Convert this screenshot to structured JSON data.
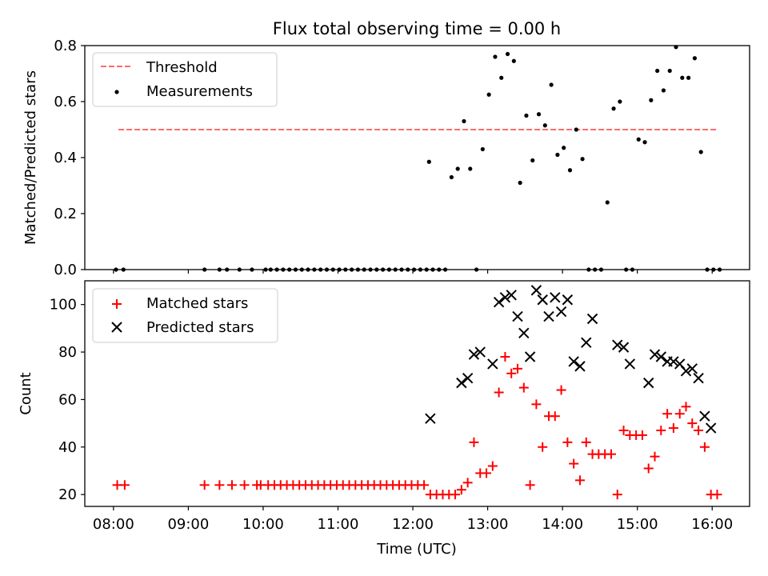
{
  "chart_data": [
    {
      "type": "scatter",
      "title": "Flux total observing time = 0.00 h",
      "xlabel": "",
      "ylabel": "Matched/Predicted stars",
      "xlim": [
        "07:37",
        "16:30"
      ],
      "ylim": [
        0,
        0.8
      ],
      "xticks": [
        "08:00",
        "09:00",
        "10:00",
        "11:00",
        "12:00",
        "13:00",
        "14:00",
        "15:00",
        "16:00"
      ],
      "yticks": [
        0,
        0.2,
        0.4,
        0.6,
        0.8
      ],
      "legend": "top-left",
      "threshold": {
        "name": "Threshold",
        "value": 0.5,
        "x_range": [
          "08:04",
          "16:04"
        ],
        "color": "#ff6b6b",
        "style": "dashed"
      },
      "series": [
        {
          "name": "Measurements",
          "color": "#000000",
          "marker": "dot",
          "x": [
            "08:02",
            "08:08",
            "09:13",
            "09:25",
            "09:31",
            "09:41",
            "09:51",
            "10:02",
            "10:06",
            "10:11",
            "10:16",
            "10:21",
            "10:26",
            "10:31",
            "10:36",
            "10:41",
            "10:46",
            "10:51",
            "10:56",
            "11:01",
            "11:06",
            "11:11",
            "11:16",
            "11:21",
            "11:26",
            "11:31",
            "11:36",
            "11:41",
            "11:46",
            "11:51",
            "11:56",
            "12:01",
            "12:06",
            "12:11",
            "12:13",
            "12:16",
            "12:21",
            "12:26",
            "12:31",
            "12:36",
            "12:41",
            "12:46",
            "12:51",
            "12:56",
            "13:01",
            "13:06",
            "13:11",
            "13:16",
            "13:21",
            "13:26",
            "13:31",
            "13:36",
            "13:41",
            "13:46",
            "13:51",
            "13:56",
            "14:01",
            "14:06",
            "14:11",
            "14:16",
            "14:21",
            "14:26",
            "14:31",
            "14:36",
            "14:41",
            "14:46",
            "14:51",
            "14:56",
            "15:01",
            "15:06",
            "15:11",
            "15:16",
            "15:21",
            "15:26",
            "15:31",
            "15:36",
            "15:41",
            "15:46",
            "15:51",
            "15:56",
            "16:01",
            "16:06"
          ],
          "y": [
            0,
            0,
            0,
            0,
            0,
            0,
            0,
            0,
            0,
            0,
            0,
            0,
            0,
            0,
            0,
            0,
            0,
            0,
            0,
            0,
            0,
            0,
            0,
            0,
            0,
            0,
            0,
            0,
            0,
            0,
            0,
            0,
            0,
            0,
            0.385,
            0,
            0,
            0,
            0.33,
            0.36,
            0.53,
            0.36,
            0,
            0.43,
            0.625,
            0.76,
            0.685,
            0.77,
            0.745,
            0.31,
            0.55,
            0.39,
            0.555,
            0.515,
            0.66,
            0.41,
            0.435,
            0.355,
            0.5,
            0.395,
            0,
            0,
            0,
            0.24,
            0.575,
            0.6,
            0,
            0,
            0.465,
            0.455,
            0.605,
            0.71,
            0.64,
            0.71,
            0.795,
            0.685,
            0.685,
            0.755,
            0.42,
            0,
            0,
            0
          ]
        }
      ]
    },
    {
      "type": "scatter",
      "title": "",
      "xlabel": "Time (UTC)",
      "ylabel": "Count",
      "xlim": [
        "07:37",
        "16:30"
      ],
      "ylim": [
        15,
        110
      ],
      "xticks": [
        "08:00",
        "09:00",
        "10:00",
        "11:00",
        "12:00",
        "13:00",
        "14:00",
        "15:00",
        "16:00"
      ],
      "yticks": [
        20,
        40,
        60,
        80,
        100
      ],
      "legend": "top-left",
      "series": [
        {
          "name": "Matched stars",
          "color": "#ff0000",
          "marker": "plus",
          "x": [
            "08:03",
            "08:09",
            "09:13",
            "09:25",
            "09:35",
            "09:45",
            "09:55",
            "09:58",
            "10:04",
            "10:09",
            "10:14",
            "10:19",
            "10:24",
            "10:29",
            "10:34",
            "10:39",
            "10:44",
            "10:49",
            "10:54",
            "10:59",
            "11:04",
            "11:09",
            "11:14",
            "11:19",
            "11:24",
            "11:29",
            "11:34",
            "11:39",
            "11:44",
            "11:49",
            "11:54",
            "11:59",
            "12:04",
            "12:09",
            "12:14",
            "12:19",
            "12:24",
            "12:29",
            "12:34",
            "12:39",
            "12:44",
            "12:49",
            "12:54",
            "12:59",
            "13:04",
            "13:09",
            "13:14",
            "13:19",
            "13:24",
            "13:29",
            "13:34",
            "13:39",
            "13:44",
            "13:49",
            "13:54",
            "13:59",
            "14:04",
            "14:09",
            "14:14",
            "14:19",
            "14:24",
            "14:29",
            "14:34",
            "14:39",
            "14:44",
            "14:49",
            "14:54",
            "14:59",
            "15:04",
            "15:09",
            "15:14",
            "15:19",
            "15:24",
            "15:29",
            "15:34",
            "15:39",
            "15:44",
            "15:49",
            "15:54",
            "15:59",
            "16:04"
          ],
          "y": [
            24,
            24,
            24,
            24,
            24,
            24,
            24,
            24,
            24,
            24,
            24,
            24,
            24,
            24,
            24,
            24,
            24,
            24,
            24,
            24,
            24,
            24,
            24,
            24,
            24,
            24,
            24,
            24,
            24,
            24,
            24,
            24,
            24,
            24,
            20,
            20,
            20,
            20,
            20,
            22,
            25,
            42,
            29,
            29,
            32,
            63,
            78,
            71,
            73,
            65,
            24,
            58,
            40,
            53,
            53,
            64,
            42,
            33,
            26,
            42,
            37,
            37,
            37,
            37,
            20,
            47,
            45,
            45,
            45,
            31,
            36,
            47,
            54,
            48,
            54,
            57,
            50,
            47,
            40,
            20,
            20
          ]
        },
        {
          "name": "Predicted stars",
          "color": "#000000",
          "marker": "x",
          "x": [
            "12:14",
            "12:39",
            "12:44",
            "12:49",
            "12:54",
            "13:04",
            "13:09",
            "13:14",
            "13:19",
            "13:24",
            "13:29",
            "13:34",
            "13:39",
            "13:44",
            "13:49",
            "13:54",
            "13:59",
            "14:04",
            "14:09",
            "14:14",
            "14:19",
            "14:24",
            "14:44",
            "14:49",
            "14:54",
            "15:09",
            "15:14",
            "15:19",
            "15:24",
            "15:29",
            "15:34",
            "15:39",
            "15:44",
            "15:49",
            "15:54",
            "15:59"
          ],
          "y": [
            52,
            67,
            69,
            79,
            80,
            75,
            101,
            103,
            104,
            95,
            88,
            78,
            106,
            102,
            95,
            103,
            97,
            102,
            76,
            74,
            84,
            94,
            83,
            82,
            75,
            67,
            79,
            78,
            76,
            76,
            75,
            72,
            73,
            69,
            53,
            48
          ]
        }
      ]
    }
  ]
}
